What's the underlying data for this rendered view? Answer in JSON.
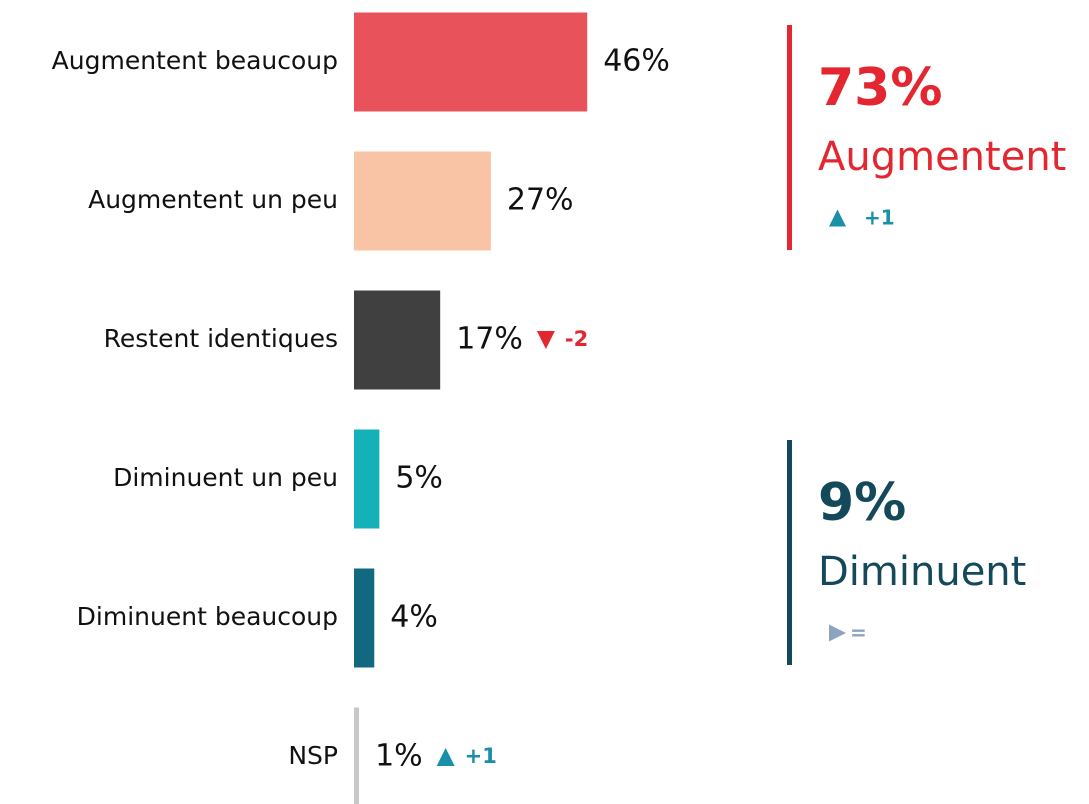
{
  "chart_data": {
    "type": "bar",
    "orientation": "horizontal",
    "categories": [
      "Augmentent beaucoup",
      "Augmentent un peu",
      "Restent identiques",
      "Diminuent un peu",
      "Diminuent beaucoup",
      "NSP"
    ],
    "values": [
      46,
      27,
      17,
      5,
      4,
      1
    ],
    "value_labels": [
      "46%",
      "27%",
      "17%",
      "5%",
      "4%",
      "1%"
    ],
    "colors": [
      "#e8525a",
      "#f8c4a5",
      "#404040",
      "#14b1b8",
      "#12697f",
      "#c8c8c8"
    ],
    "changes": [
      null,
      null,
      {
        "label": "-2",
        "direction": "down",
        "color": "#e3262f"
      },
      null,
      null,
      {
        "label": "+1",
        "direction": "up",
        "color": "#1a8fa8"
      }
    ],
    "summaries": [
      {
        "value": 73,
        "value_label": "73%",
        "label": "Augmentent",
        "color": "#e3262f",
        "change": {
          "label": "+1",
          "direction": "up",
          "color": "#1a8fa8"
        }
      },
      {
        "value": 9,
        "value_label": "9%",
        "label": "Diminuent",
        "color": "#13495a",
        "change": {
          "label": "=",
          "direction": "flat",
          "color": "#8ea3c2"
        }
      }
    ]
  }
}
